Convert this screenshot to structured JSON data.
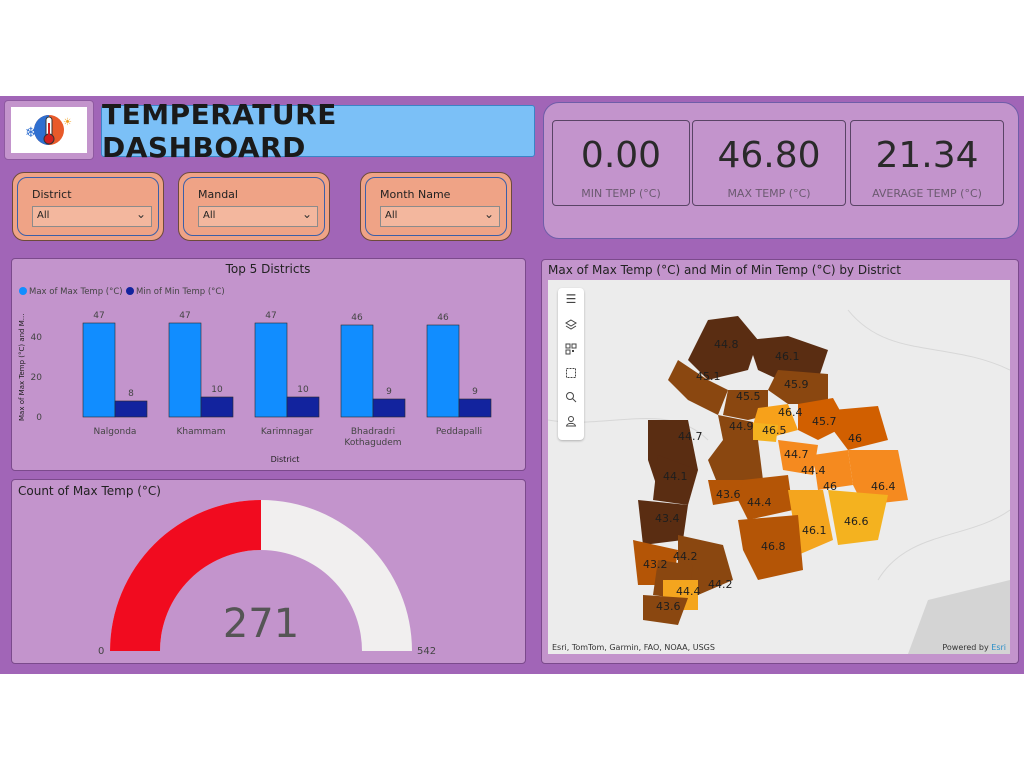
{
  "header": {
    "title": "TEMPERATURE DASHBOARD"
  },
  "slicers": [
    {
      "label": "District",
      "value": "All"
    },
    {
      "label": "Mandal",
      "value": "All"
    },
    {
      "label": "Month Name",
      "value": "All"
    }
  ],
  "kpis": [
    {
      "value": "0.00",
      "label": "MIN TEMP (°C)"
    },
    {
      "value": "46.80",
      "label": "MAX TEMP (°C)"
    },
    {
      "value": "21.34",
      "label": "AVERAGE TEMP (°C)"
    }
  ],
  "top_districts": {
    "title": "Top 5 Districts",
    "legend": [
      "Max of Max Temp (°C)",
      "Min of Min Temp (°C)"
    ]
  },
  "gauge": {
    "title": "Count of Max Temp (°C)",
    "value": "271",
    "min": "0",
    "max": "542",
    "fill_color": "#f10b1f",
    "track_color": "#f1efef"
  },
  "map": {
    "title": "Max of Max Temp (°C) and Min of Min Temp (°C) by District",
    "attribution": "Esri, TomTom, Garmin, FAO, NOAA, USGS",
    "powered_prefix": "Powered by ",
    "powered_brand": "Esri",
    "region_labels": [
      "44.8",
      "46.1",
      "45.1",
      "45.9",
      "45.5",
      "46.4",
      "46.5",
      "44.9",
      "45.7",
      "44.7",
      "46",
      "44.7",
      "44.4",
      "44.1",
      "46",
      "46.4",
      "43.6",
      "44.4",
      "43.4",
      "46.1",
      "46.6",
      "46.8",
      "44.2",
      "43.2",
      "44.2",
      "44.4",
      "43.6"
    ]
  },
  "toolbar_icons": [
    "menu-icon",
    "layers-icon",
    "qr-icon",
    "select-box-icon",
    "search-icon",
    "user-icon"
  ],
  "chart_data": {
    "type": "bar",
    "title": "Top 5 Districts",
    "xlabel": "District",
    "ylabel": "Max of Max Temp (°C) and M...",
    "categories": [
      "Nalgonda",
      "Khammam",
      "Karimnagar",
      "Bhadradri Kothagudem",
      "Peddapalli"
    ],
    "series": [
      {
        "name": "Max of Max Temp (°C)",
        "values": [
          47,
          47,
          47,
          46,
          46
        ],
        "color": "#118dff"
      },
      {
        "name": "Min of Min Temp (°C)",
        "values": [
          8,
          10,
          10,
          9,
          9
        ],
        "color": "#12239e"
      }
    ],
    "yticks": [
      0,
      20,
      40
    ],
    "ylim": [
      0,
      50
    ],
    "legend": "top-left",
    "grid": false
  }
}
